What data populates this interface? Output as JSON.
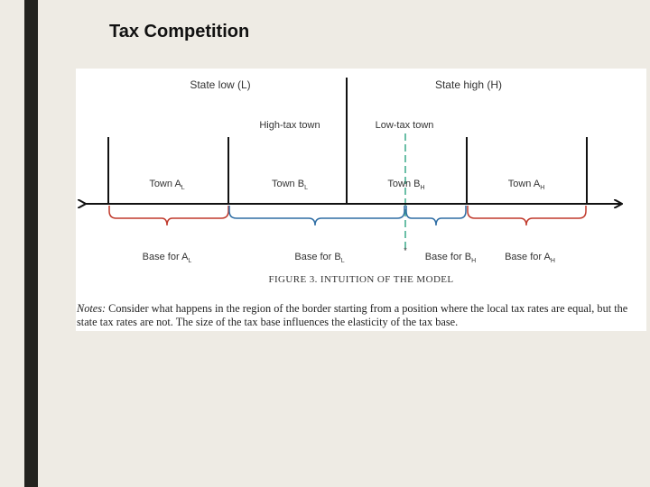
{
  "slide": {
    "title": "Tax Competition"
  },
  "figure": {
    "state_low_label": "State low (L)",
    "state_high_label": "State high (H)",
    "high_tax_town_label": "High-tax town",
    "low_tax_town_label": "Low-tax town",
    "towns": [
      {
        "label": "Town A",
        "sub": "L"
      },
      {
        "label": "Town B",
        "sub": "L"
      },
      {
        "label": "Town B",
        "sub": "H"
      },
      {
        "label": "Town A",
        "sub": "H"
      }
    ],
    "bases": [
      {
        "label": "Base for A",
        "sub": "L",
        "color": "#c0392b"
      },
      {
        "label": "Base for B",
        "sub": "L",
        "color": "#2e6da4"
      },
      {
        "label": "Base for B",
        "sub": "H",
        "color": "#2e6da4"
      },
      {
        "label": "Base for A",
        "sub": "H",
        "color": "#c0392b"
      }
    ],
    "marker": "*",
    "colors": {
      "red_base": "#c0392b",
      "blue_base": "#2e6da4",
      "border_dash": "#3aaa8a"
    },
    "caption": "FIGURE 3. INTUITION OF THE MODEL",
    "notes_label": "Notes:",
    "notes_text": " Consider what happens in the region of the border starting from a position where the local tax rates are equal, but the state tax rates are not. The size of the tax base influences the elasticity of the tax base."
  }
}
